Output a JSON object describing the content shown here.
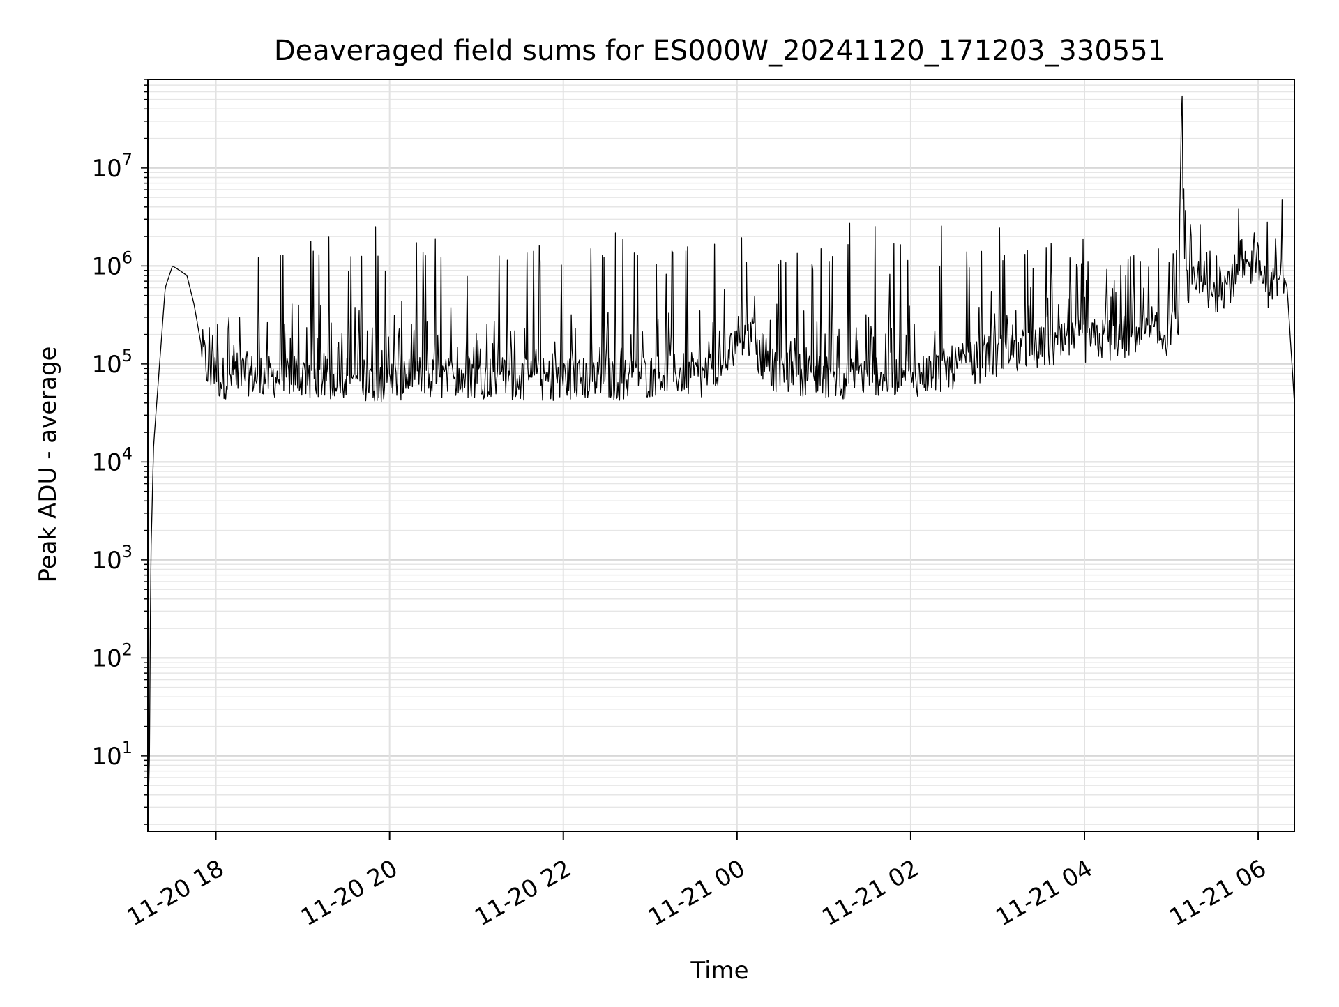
{
  "chart_data": {
    "type": "line",
    "title": "Deaveraged field sums for ES000W_20241120_171203_330551",
    "xlabel": "Time",
    "ylabel": "Peak ADU - average",
    "yscale": "log",
    "ylim": [
      1.7,
      80000000
    ],
    "xlim": [
      "2024-11-20 17:13",
      "2024-11-21 06:25"
    ],
    "x_ticks": [
      "11-20 18",
      "11-20 20",
      "11-20 22",
      "11-21 00",
      "11-21 02",
      "11-21 04",
      "11-21 06"
    ],
    "y_ticks": [
      {
        "base": "10",
        "exp": "1"
      },
      {
        "base": "10",
        "exp": "2"
      },
      {
        "base": "10",
        "exp": "3"
      },
      {
        "base": "10",
        "exp": "4"
      },
      {
        "base": "10",
        "exp": "5"
      },
      {
        "base": "10",
        "exp": "6"
      },
      {
        "base": "10",
        "exp": "7"
      }
    ],
    "grid": true,
    "line_color": "#000000",
    "series": [
      {
        "x": [
          "2024-11-20 17:13",
          "2024-11-20 17:14",
          "2024-11-20 17:15",
          "2024-11-20 17:17",
          "2024-11-20 17:20",
          "2024-11-20 17:25",
          "2024-11-20 17:30",
          "2024-11-20 17:35",
          "2024-11-20 17:40",
          "2024-11-20 17:45",
          "2024-11-20 17:50",
          "2024-11-20 17:55",
          "2024-11-20 18:00",
          "2024-11-20 18:10",
          "2024-11-20 18:20",
          "2024-11-20 18:35",
          "2024-11-20 18:55",
          "2024-11-20 19:10",
          "2024-11-20 19:30",
          "2024-11-20 19:50",
          "2024-11-20 20:05",
          "2024-11-20 20:20",
          "2024-11-20 20:40",
          "2024-11-20 21:00",
          "2024-11-20 21:20",
          "2024-11-20 21:40",
          "2024-11-20 22:00",
          "2024-11-20 22:20",
          "2024-11-20 22:40",
          "2024-11-20 23:00",
          "2024-11-20 23:20",
          "2024-11-20 23:40",
          "2024-11-20 23:50",
          "2024-11-21 00:00",
          "2024-11-21 00:10",
          "2024-11-21 00:20",
          "2024-11-21 00:40",
          "2024-11-21 01:00",
          "2024-11-21 01:20",
          "2024-11-21 01:40",
          "2024-11-21 02:00",
          "2024-11-21 02:20",
          "2024-11-21 02:40",
          "2024-11-21 03:00",
          "2024-11-21 03:20",
          "2024-11-21 03:40",
          "2024-11-21 04:00",
          "2024-11-21 04:20",
          "2024-11-21 04:40",
          "2024-11-21 05:00",
          "2024-11-21 05:05",
          "2024-11-21 05:07",
          "2024-11-21 05:10",
          "2024-11-21 05:20",
          "2024-11-21 05:30",
          "2024-11-21 05:40",
          "2024-11-21 05:50",
          "2024-11-21 05:58",
          "2024-11-21 06:05",
          "2024-11-21 06:10",
          "2024-11-21 06:15",
          "2024-11-21 06:20",
          "2024-11-21 06:25"
        ],
        "y": [
          4,
          5,
          1000,
          15000,
          60000,
          600000,
          1000000,
          900000,
          800000,
          400000,
          150000,
          80000,
          70000,
          75000,
          80000,
          72000,
          78000,
          70000,
          75000,
          68000,
          70000,
          72000,
          70000,
          75000,
          70000,
          68000,
          72000,
          70000,
          70000,
          75000,
          80000,
          75000,
          80000,
          200000,
          180000,
          90000,
          80000,
          75000,
          72000,
          80000,
          75000,
          85000,
          100000,
          120000,
          140000,
          150000,
          170000,
          180000,
          200000,
          200000,
          300000,
          33000000,
          600000,
          600000,
          500000,
          700000,
          800000,
          1200000,
          700000,
          500000,
          1100000,
          600000,
          40000
        ],
        "spikes_y": [
          1600000,
          1400000,
          1300000,
          1700000,
          1500000,
          1200000,
          1600000,
          2500000,
          1100000,
          1400000
        ]
      }
    ]
  }
}
